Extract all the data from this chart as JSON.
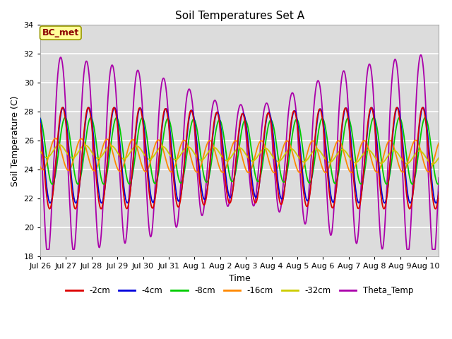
{
  "title": "Soil Temperatures Set A",
  "xlabel": "Time",
  "ylabel": "Soil Temperature (C)",
  "annotation": "BC_met",
  "ylim": [
    18,
    34
  ],
  "xlim_days": 15.5,
  "background_color": "#dcdcdc",
  "grid_color": "white",
  "series_colors": {
    "-2cm": "#dd0000",
    "-4cm": "#0000dd",
    "-8cm": "#00cc00",
    "-16cm": "#ff8800",
    "-32cm": "#cccc00",
    "Theta_Temp": "#aa00aa"
  },
  "x_tick_labels": [
    "Jul 26",
    "Jul 27",
    "Jul 28",
    "Jul 29",
    "Jul 30",
    "Jul 31",
    "Aug 1",
    "Aug 2",
    "Aug 3",
    "Aug 4",
    "Aug 5",
    "Aug 6",
    "Aug 7",
    "Aug 8",
    "Aug 9",
    "Aug 10"
  ],
  "x_tick_positions": [
    0,
    1,
    2,
    3,
    4,
    5,
    6,
    7,
    8,
    9,
    10,
    11,
    12,
    13,
    14,
    15
  ],
  "y_ticks": [
    18,
    20,
    22,
    24,
    26,
    28,
    30,
    32,
    34
  ]
}
